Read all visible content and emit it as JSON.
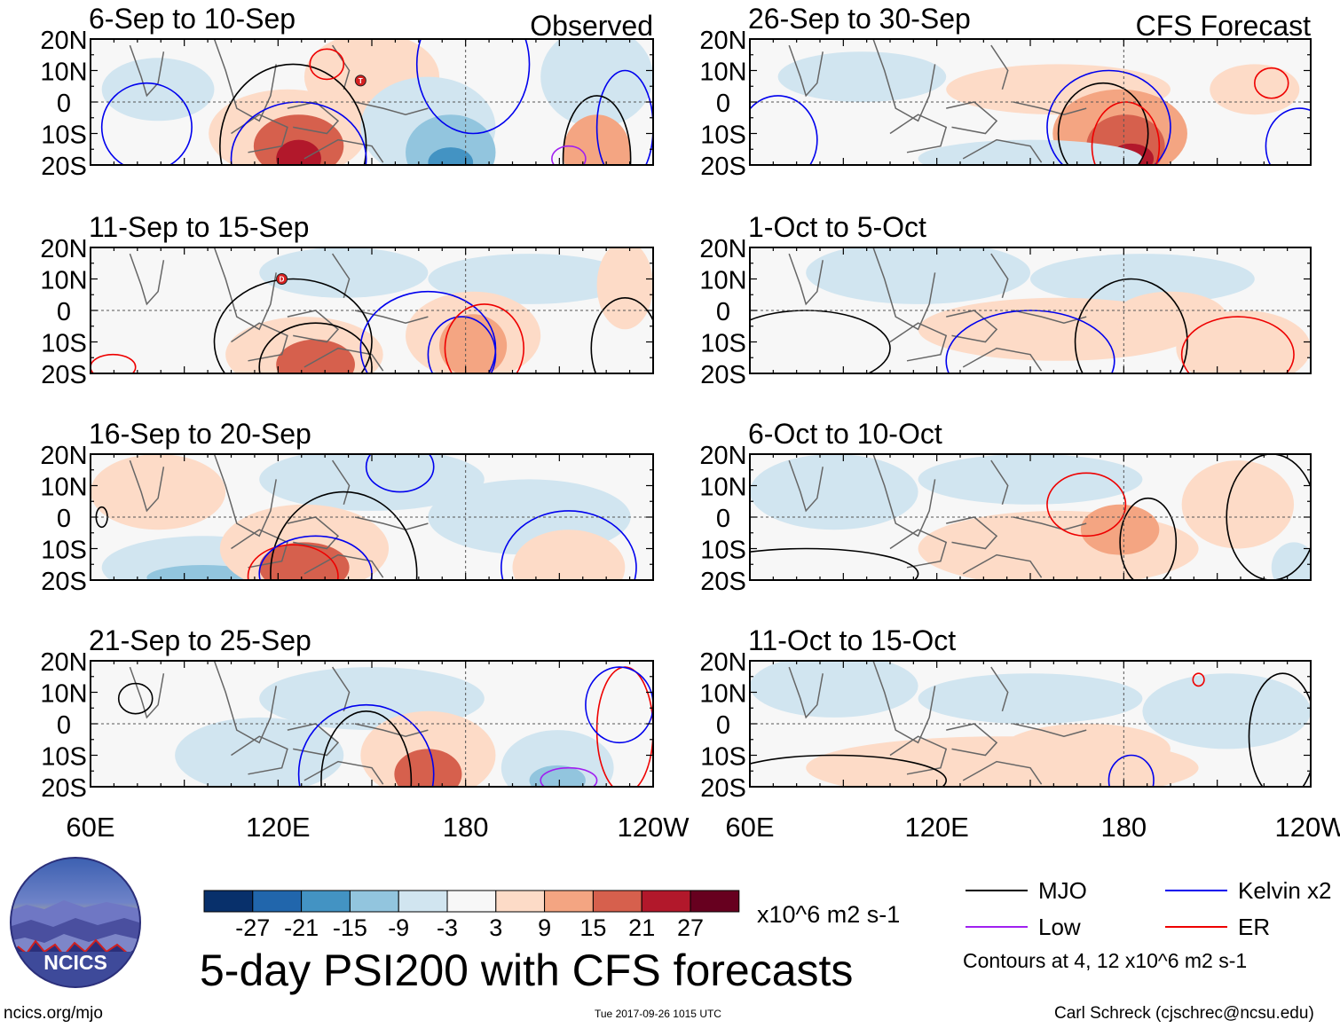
{
  "panels_left_header": "Observed",
  "panels_right_header": "CFS Forecast",
  "chart_data": [
    {
      "type": "heatmap",
      "title": "6-Sep to 10-Sep",
      "header": "Observed"
    },
    {
      "type": "heatmap",
      "title": "11-Sep to 15-Sep"
    },
    {
      "type": "heatmap",
      "title": "16-Sep to 20-Sep"
    },
    {
      "type": "heatmap",
      "title": "21-Sep to 25-Sep"
    },
    {
      "type": "heatmap",
      "title": "26-Sep to 30-Sep",
      "header": "CFS Forecast"
    },
    {
      "type": "heatmap",
      "title": "1-Oct to 5-Oct"
    },
    {
      "type": "heatmap",
      "title": "6-Oct to 10-Oct"
    },
    {
      "type": "heatmap",
      "title": "11-Oct to 15-Oct"
    }
  ],
  "axes": {
    "y_ticks": [
      "20N",
      "10N",
      "0",
      "10S",
      "20S"
    ],
    "x_ticks": [
      "60E",
      "120E",
      "180",
      "120W"
    ]
  },
  "colorbar": {
    "colors": [
      "#08306b",
      "#2166ac",
      "#4393c3",
      "#92c5de",
      "#d1e5f0",
      "#f7f7f7",
      "#fddbc7",
      "#f4a582",
      "#d6604d",
      "#b2182b",
      "#67001f"
    ],
    "labels": [
      "-27",
      "-21",
      "-15",
      "-9",
      "-3",
      "3",
      "9",
      "15",
      "21",
      "27"
    ],
    "units": "x10^6 m2 s-1"
  },
  "legend": {
    "items": [
      {
        "label": "MJO",
        "color": "#000000"
      },
      {
        "label": "Kelvin x2",
        "color": "#0000ee"
      },
      {
        "label": "Low",
        "color": "#a020f0"
      },
      {
        "label": "ER",
        "color": "#ee0000"
      }
    ],
    "contours_note": "Contours at 4, 12 x10^6 m2 s-1"
  },
  "title": "5-day PSI200 with CFS forecasts",
  "footer": {
    "url": "ncics.org/mjo",
    "timestamp": "Tue 2017-09-26 1015 UTC",
    "author": "Carl Schreck (cjschrec@ncsu.edu)"
  },
  "logo_text": "NCICS",
  "storm_marks": [
    "T",
    "D"
  ]
}
